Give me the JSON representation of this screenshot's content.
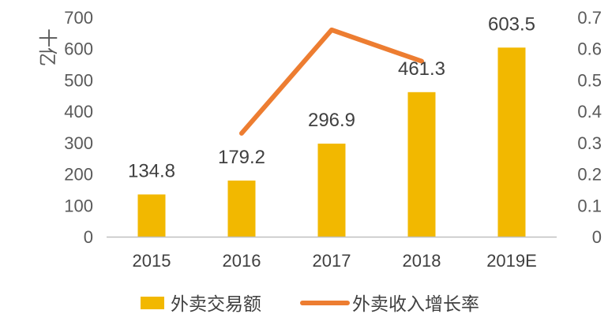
{
  "chart_data": {
    "type": "bar",
    "categories": [
      "2015",
      "2016",
      "2017",
      "2018",
      "2019E"
    ],
    "ylabel": "十亿",
    "ylim": [
      0,
      700
    ],
    "y2lim": [
      0,
      0.7
    ],
    "y_ticks": [
      "0",
      "100",
      "200",
      "300",
      "400",
      "500",
      "600",
      "700"
    ],
    "y2_ticks": [
      "0",
      "0.1",
      "0.2",
      "0.3",
      "0.4",
      "0.5",
      "0.6",
      "0.7"
    ],
    "grid": false,
    "legend_position": "bottom",
    "series": [
      {
        "name": "外卖交易额",
        "type": "bar",
        "axis": "left",
        "color": "#F2B800",
        "values": [
          134.8,
          179.2,
          296.9,
          461.3,
          603.5
        ],
        "labels": [
          "134.8",
          "179.2",
          "296.9",
          "461.3",
          "603.5"
        ]
      },
      {
        "name": "外卖收入增长率",
        "type": "line",
        "axis": "right",
        "color": "#ED7D31",
        "values": [
          null,
          0.33,
          0.66,
          0.56,
          null
        ]
      }
    ]
  }
}
